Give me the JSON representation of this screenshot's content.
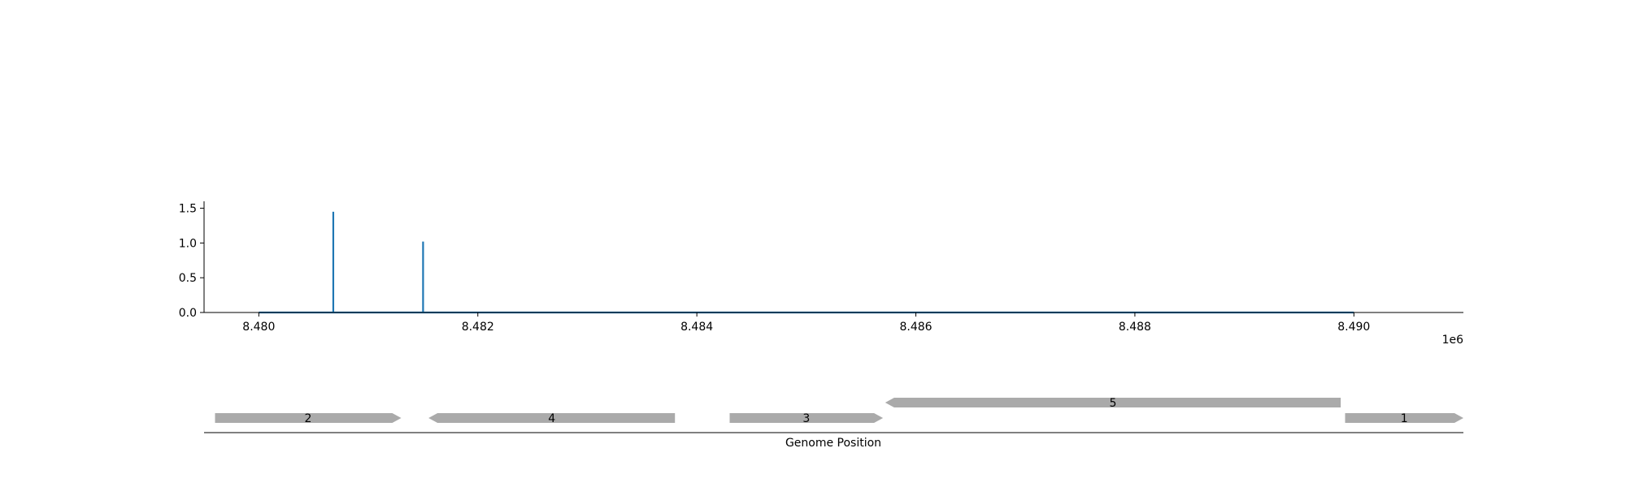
{
  "chart_data": [
    {
      "type": "line",
      "title": "",
      "xlabel": "",
      "ylabel": "",
      "x_offset_label": "1e6",
      "xlim": [
        8479500,
        8491000
      ],
      "ylim": [
        0,
        1.6
      ],
      "x_ticks": [
        8480000,
        8482000,
        8484000,
        8486000,
        8488000,
        8490000
      ],
      "x_tick_labels": [
        "8.480",
        "8.482",
        "8.484",
        "8.486",
        "8.488",
        "8.490"
      ],
      "y_ticks": [
        0.0,
        0.5,
        1.0,
        1.5
      ],
      "y_tick_labels": [
        "0.0",
        "0.5",
        "1.0",
        "1.5"
      ],
      "grid": false,
      "series": [
        {
          "color": "#1f77b4",
          "x": [
            8480000,
            8480680,
            8480680,
            8480680,
            8481500,
            8481500,
            8481500,
            8490000
          ],
          "y": [
            0,
            0,
            1.45,
            0,
            0,
            1.02,
            0,
            0
          ]
        }
      ]
    },
    {
      "type": "gene-track",
      "xlabel": "Genome Position",
      "xlim": [
        8479500,
        8491000
      ],
      "color": "#aaaaaa",
      "genes": [
        {
          "label": "2",
          "start": 8479600,
          "end": 8481300,
          "strand": "+",
          "row": 0
        },
        {
          "label": "4",
          "start": 8481550,
          "end": 8483800,
          "strand": "-",
          "row": 0
        },
        {
          "label": "3",
          "start": 8484300,
          "end": 8485700,
          "strand": "+",
          "row": 0
        },
        {
          "label": "5",
          "start": 8485720,
          "end": 8489880,
          "strand": "-",
          "row": 1
        },
        {
          "label": "1",
          "start": 8489920,
          "end": 8491000,
          "strand": "+",
          "row": 0
        }
      ]
    }
  ]
}
